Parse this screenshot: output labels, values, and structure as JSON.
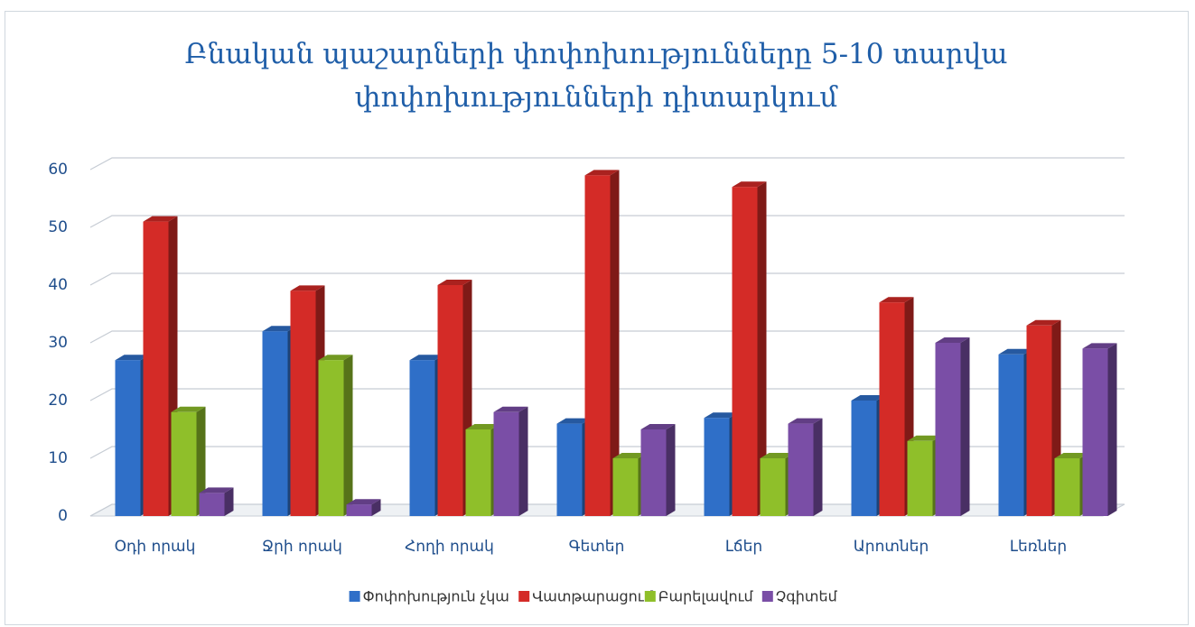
{
  "chart_data": {
    "type": "bar3d",
    "title": "Բնական պաշարների փոփոխությունները 5-10 տարվա փոփոխությունների դիտարկում",
    "categories": [
      "Օդի որակ",
      "Ջրի որակ",
      "Հողի որակ",
      "Գետեր",
      "Լճեր",
      "Արոտներ",
      "Լեռներ"
    ],
    "series": [
      {
        "name": "Փոփոխություն չկա",
        "color": "#2f6fc8",
        "values": [
          27,
          32,
          27,
          16,
          17,
          20,
          28
        ]
      },
      {
        "name": "Վատթարացում",
        "color": "#d42b27",
        "values": [
          51,
          39,
          40,
          59,
          57,
          37,
          33
        ]
      },
      {
        "name": "Բարելավում",
        "color": "#8fbf2a",
        "values": [
          18,
          27,
          15,
          10,
          10,
          13,
          10
        ]
      },
      {
        "name": "Չգիտեմ",
        "color": "#7a4ea6",
        "values": [
          4,
          2,
          18,
          15,
          16,
          30,
          29
        ]
      }
    ],
    "ylim": [
      0,
      60
    ],
    "yticks": [
      0,
      10,
      20,
      30,
      40,
      50,
      60
    ],
    "grid": true,
    "legend": "bottom"
  }
}
